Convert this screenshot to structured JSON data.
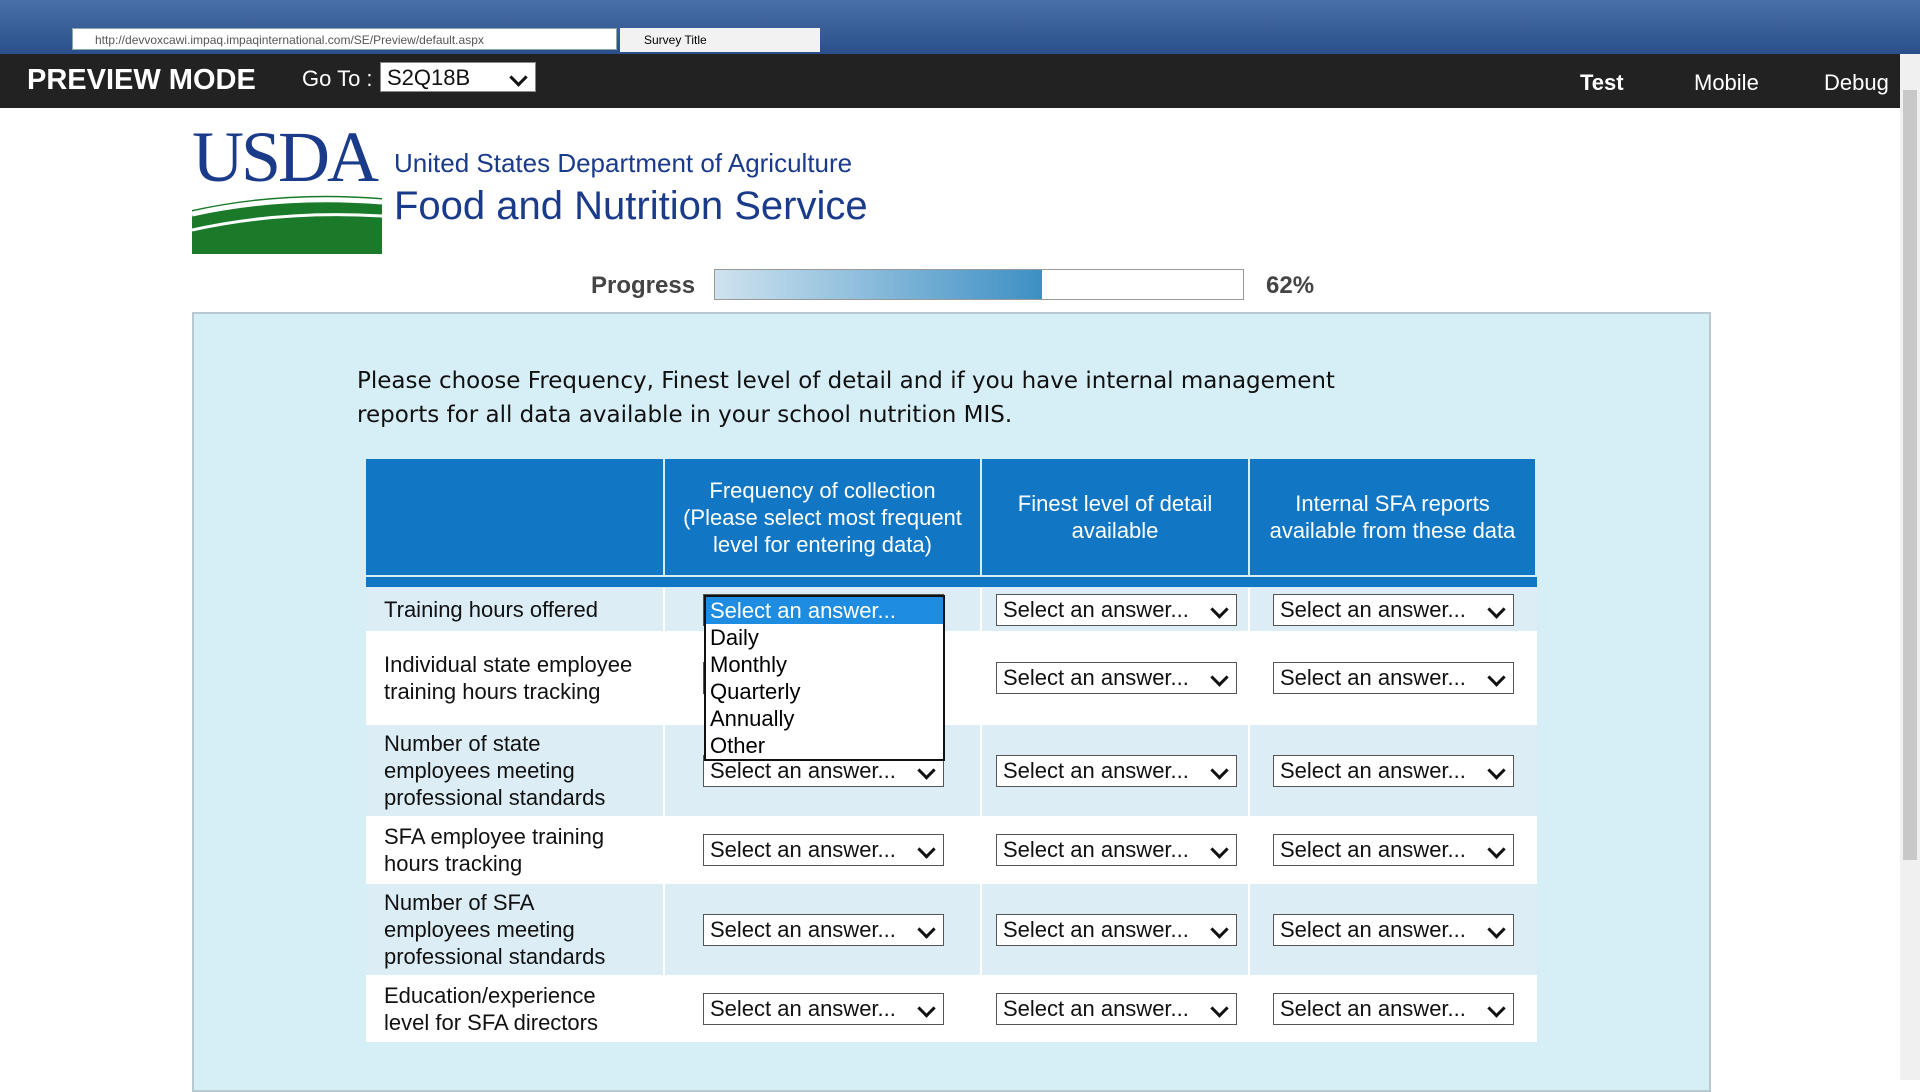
{
  "browser": {
    "url": "http://devvoxcawi.impaq.impaqinternational.com/SE/Preview/default.aspx",
    "tab_title": "Survey Title"
  },
  "toolbar": {
    "mode": "PREVIEW MODE",
    "goto_label": "Go To :",
    "goto_value": "S2Q18B",
    "buttons": [
      "Test",
      "Mobile",
      "Debug"
    ]
  },
  "header": {
    "logo": "USDA",
    "line1": "United States Department of Agriculture",
    "line2": "Food and Nutrition Service"
  },
  "progress": {
    "label": "Progress",
    "value": 62,
    "value_label": "62%"
  },
  "question": "Please choose Frequency, Finest level of detail and if you have internal management reports for all data available in your school nutrition MIS.",
  "table": {
    "columns": [
      "Frequency of collection (Please select most frequent level for entering data)",
      "Finest level of detail available",
      "Internal SFA reports available from these data"
    ],
    "placeholder": "Select an answer...",
    "rows": [
      "Training hours offered",
      "Individual state employee training hours tracking",
      "Number of state employees meeting professional standards",
      "SFA employee training hours tracking",
      "Number of SFA employees meeting professional standards",
      "Education/experience level for SFA directors"
    ]
  },
  "dropdown": {
    "options": [
      "Daily",
      "Monthly",
      "Quarterly",
      "Annually",
      "Other"
    ]
  }
}
